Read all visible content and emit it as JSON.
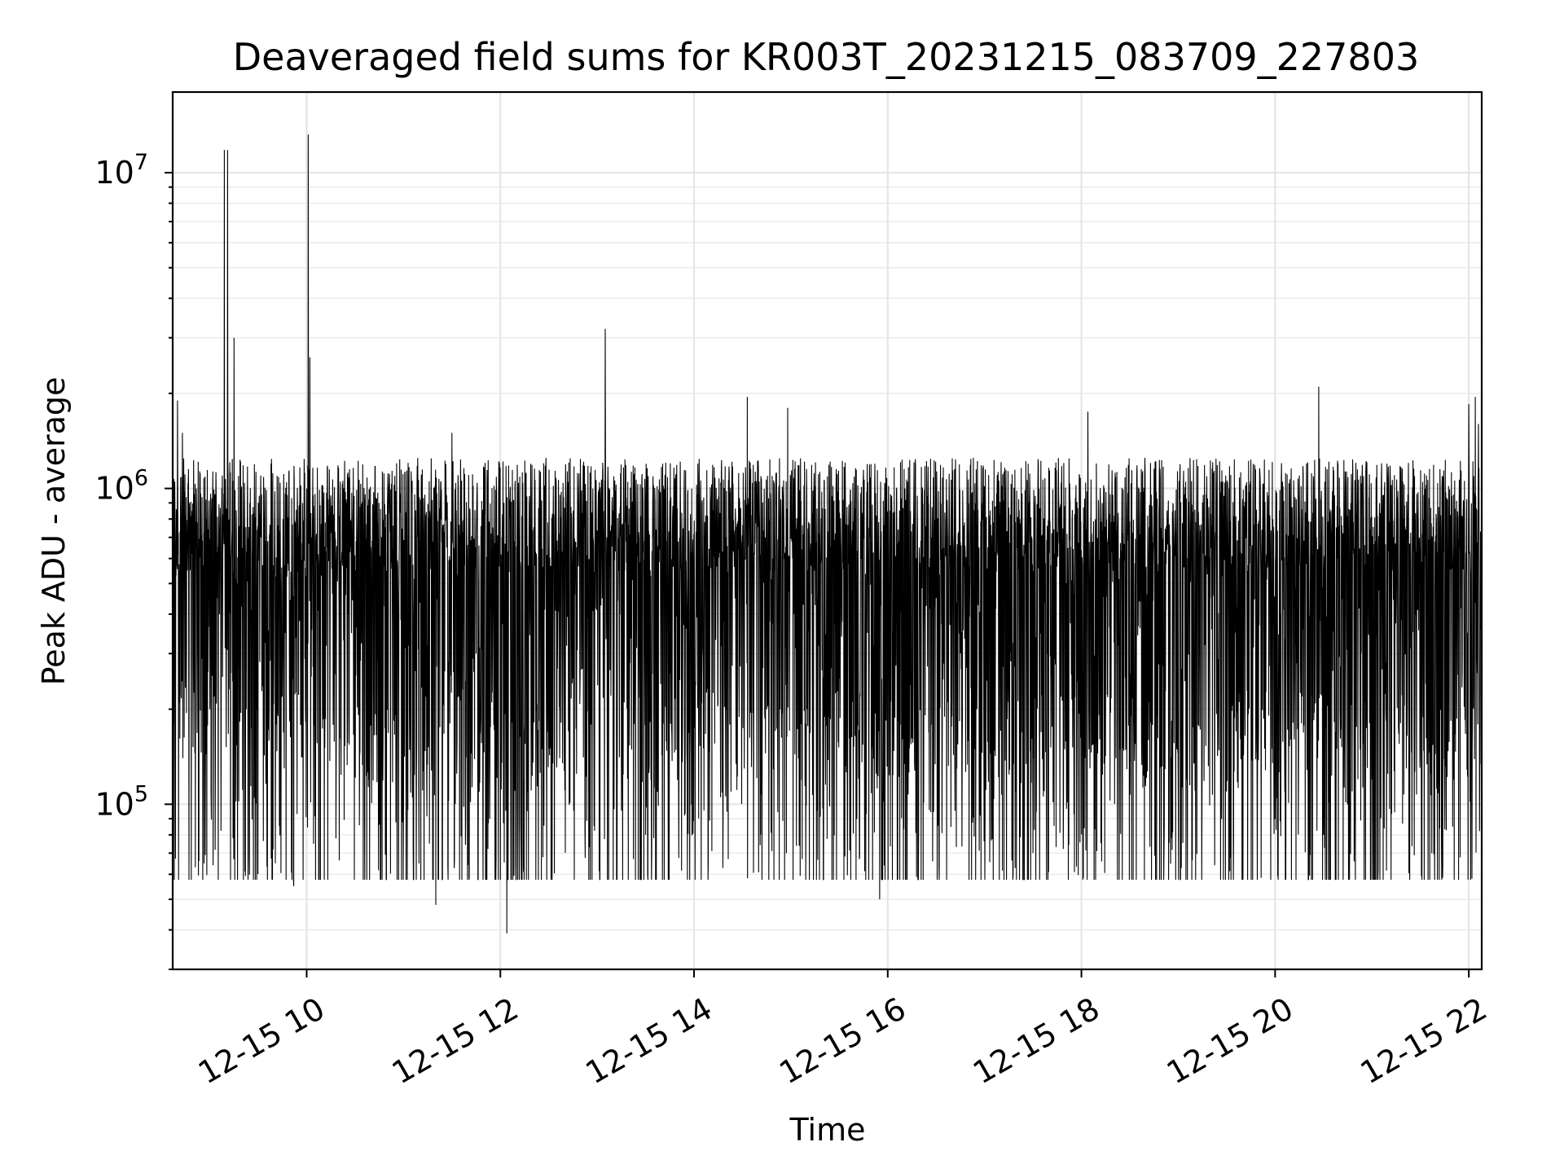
{
  "chart_data": {
    "type": "line",
    "title": "Deaveraged field sums for KR003T_20231215_083709_227803",
    "xlabel": "Time",
    "ylabel": "Peak ADU - average",
    "y_scale": "log",
    "x_range": [
      "2023-12-15 08:37",
      "2023-12-15 22:08"
    ],
    "ylim": [
      30000,
      18000000
    ],
    "grid": true,
    "line_color": "#000000",
    "x_ticks": [
      {
        "value": "2023-12-15 10:00",
        "label": "12-15 10"
      },
      {
        "value": "2023-12-15 12:00",
        "label": "12-15 12"
      },
      {
        "value": "2023-12-15 14:00",
        "label": "12-15 14"
      },
      {
        "value": "2023-12-15 16:00",
        "label": "12-15 16"
      },
      {
        "value": "2023-12-15 18:00",
        "label": "12-15 18"
      },
      {
        "value": "2023-12-15 20:00",
        "label": "12-15 20"
      },
      {
        "value": "2023-12-15 22:00",
        "label": "12-15 22"
      }
    ],
    "y_ticks": [
      {
        "value": 100000,
        "base": "10",
        "exp": "5"
      },
      {
        "value": 1000000,
        "base": "10",
        "exp": "6"
      },
      {
        "value": 10000000,
        "base": "10",
        "exp": "7"
      }
    ],
    "series": [
      {
        "points": [
          [
            "2023-12-15 08:37",
            1100000
          ],
          [
            "2023-12-15 08:40",
            1900000
          ],
          [
            "2023-12-15 08:43",
            1500000
          ],
          [
            "2023-12-15 08:46",
            550000
          ],
          [
            "2023-12-15 08:49",
            850000
          ],
          [
            "2023-12-15 08:52",
            350000
          ],
          [
            "2023-12-15 08:55",
            300000
          ],
          [
            "2023-12-15 08:58",
            800000
          ],
          [
            "2023-12-15 09:00",
            200000
          ],
          [
            "2023-12-15 09:03",
            900000
          ],
          [
            "2023-12-15 09:06",
            400000
          ],
          [
            "2023-12-15 09:09",
            11800000
          ],
          [
            "2023-12-15 09:10",
            300000
          ],
          [
            "2023-12-15 09:11",
            11800000
          ],
          [
            "2023-12-15 09:13",
            600000
          ],
          [
            "2023-12-15 09:15",
            3000000
          ],
          [
            "2023-12-15 09:17",
            500000
          ],
          [
            "2023-12-15 09:30",
            900000
          ],
          [
            "2023-12-15 09:45",
            300000
          ],
          [
            "2023-12-15 09:52",
            55000
          ],
          [
            "2023-12-15 10:00",
            1000000
          ],
          [
            "2023-12-15 10:01",
            13200000
          ],
          [
            "2023-12-15 10:02",
            2600000
          ],
          [
            "2023-12-15 10:03",
            700000
          ],
          [
            "2023-12-15 10:30",
            200000
          ],
          [
            "2023-12-15 11:00",
            100000
          ],
          [
            "2023-12-15 11:20",
            48000
          ],
          [
            "2023-12-15 11:30",
            1500000
          ],
          [
            "2023-12-15 11:45",
            300000
          ],
          [
            "2023-12-15 12:04",
            39000
          ],
          [
            "2023-12-15 12:30",
            150000
          ],
          [
            "2023-12-15 12:45",
            800000
          ],
          [
            "2023-12-15 13:05",
            3200000
          ],
          [
            "2023-12-15 13:06",
            700000
          ],
          [
            "2023-12-15 13:30",
            80000
          ],
          [
            "2023-12-15 14:00",
            600000
          ],
          [
            "2023-12-15 14:33",
            1950000
          ],
          [
            "2023-12-15 14:34",
            800000
          ],
          [
            "2023-12-15 14:58",
            1800000
          ],
          [
            "2023-12-15 14:59",
            500000
          ],
          [
            "2023-12-15 15:30",
            250000
          ],
          [
            "2023-12-15 15:55",
            50000
          ],
          [
            "2023-12-15 16:30",
            450000
          ],
          [
            "2023-12-15 17:00",
            120000
          ],
          [
            "2023-12-15 17:30",
            70000
          ],
          [
            "2023-12-15 18:04",
            1750000
          ],
          [
            "2023-12-15 18:05",
            500000
          ],
          [
            "2023-12-15 18:30",
            200000
          ],
          [
            "2023-12-15 19:00",
            100000
          ],
          [
            "2023-12-15 19:30",
            600000
          ],
          [
            "2023-12-15 20:00",
            120000
          ],
          [
            "2023-12-15 20:27",
            2100000
          ],
          [
            "2023-12-15 20:28",
            650000
          ],
          [
            "2023-12-15 20:30",
            80000
          ],
          [
            "2023-12-15 21:00",
            120000
          ],
          [
            "2023-12-15 21:30",
            300000
          ],
          [
            "2023-12-15 21:50",
            85000
          ],
          [
            "2023-12-15 22:00",
            1850000
          ],
          [
            "2023-12-15 22:04",
            1950000
          ],
          [
            "2023-12-15 22:06",
            1600000
          ],
          [
            "2023-12-15 22:08",
            360000
          ]
        ]
      }
    ]
  }
}
